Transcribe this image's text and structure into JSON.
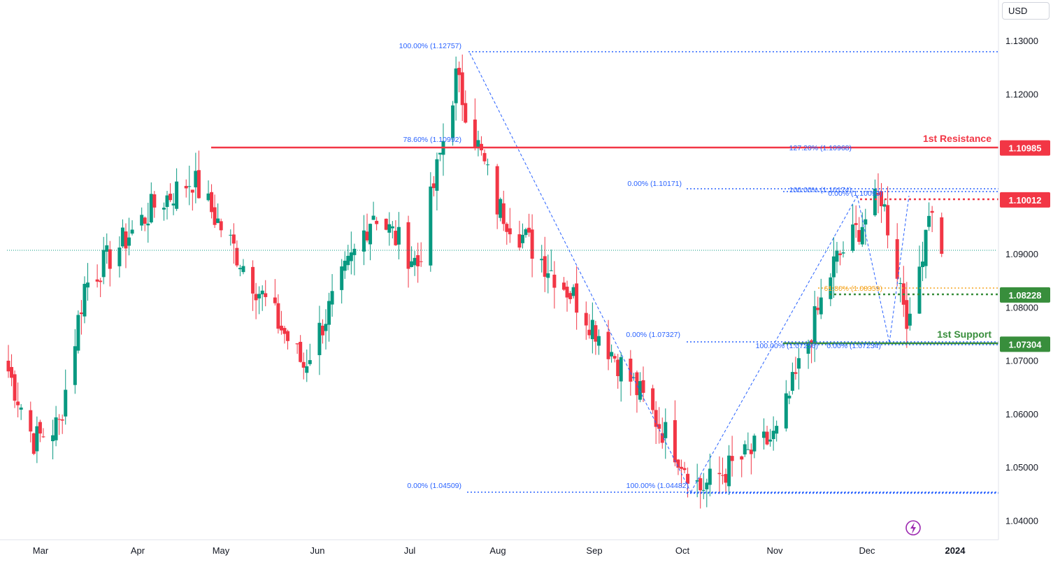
{
  "currency_button": "USD",
  "price_axis": {
    "ticks": [
      "1.04000",
      "1.05000",
      "1.06000",
      "1.07000",
      "1.08000",
      "1.09000",
      "1.10000",
      "1.11000",
      "1.12000",
      "1.13000"
    ]
  },
  "time_axis": {
    "labels": [
      "Mar",
      "Apr",
      "May",
      "Jun",
      "Jul",
      "Aug",
      "Sep",
      "Oct",
      "Nov",
      "Dec",
      "2024"
    ]
  },
  "level_badges": [
    {
      "label": "1.10985",
      "price": 1.10985,
      "color": "#f23645"
    },
    {
      "label": "1.10012",
      "price": 1.10012,
      "color": "#f23645"
    },
    {
      "label": "1.08228",
      "price": 1.08228,
      "color": "#388e3c"
    },
    {
      "label": "1.07304",
      "price": 1.07304,
      "color": "#388e3c"
    }
  ],
  "annotations": {
    "resistance_label": "1st Resistance",
    "support_label": "1st Support",
    "fib_labels": [
      "100.00% (1.12757)",
      "78.60% (1.10992)",
      "0.00% (1.04509)",
      "100.00% (1.04482)",
      "0.00% (1.10171)",
      "0.00% (1.07327)",
      "127.20% (1.10968)",
      "100.00% (1.10174)",
      "0.00% (1.10093)",
      "61.80% (1.08359)",
      "0.00% (1.07234)",
      "100.00% (1.07256)"
    ]
  },
  "colors": {
    "up": "#089981",
    "down": "#f23645",
    "resistance": "#f23645",
    "support": "#388e3c",
    "fib": "#2962ff",
    "fib_golden": "#f5a623",
    "grid_text": "#131722"
  },
  "chart_data": {
    "type": "candlestick",
    "instrument_currency": "USD",
    "period": "daily, late Feb 2023 to mid Dec 2023",
    "ylim": [
      1.035,
      1.135
    ],
    "last_price": 1.09,
    "key_levels": {
      "resistance_1": 1.10985,
      "resistance_dotted": 1.10012,
      "support_dotted": 1.08228,
      "support_1": 1.07304
    },
    "close_path_anchors": [
      {
        "date": "2023-02-27",
        "close": 1.068
      },
      {
        "date": "2023-03-07",
        "close": 1.055
      },
      {
        "date": "2023-03-15",
        "close": 1.058
      },
      {
        "date": "2023-03-23",
        "close": 1.084
      },
      {
        "date": "2023-04-14",
        "close": 1.099
      },
      {
        "date": "2023-04-26",
        "close": 1.104
      },
      {
        "date": "2023-05-31",
        "close": 1.069
      },
      {
        "date": "2023-06-22",
        "close": 1.098
      },
      {
        "date": "2023-07-06",
        "close": 1.088
      },
      {
        "date": "2023-07-18",
        "close": 1.123
      },
      {
        "date": "2023-07-31",
        "close": 1.099
      },
      {
        "date": "2023-08-24",
        "close": 1.082
      },
      {
        "date": "2023-09-07",
        "close": 1.07
      },
      {
        "date": "2023-10-03",
        "close": 1.046
      },
      {
        "date": "2023-10-27",
        "close": 1.056
      },
      {
        "date": "2023-11-14",
        "close": 1.088
      },
      {
        "date": "2023-11-29",
        "close": 1.101
      },
      {
        "date": "2023-12-08",
        "close": 1.076
      },
      {
        "date": "2023-12-14",
        "close": 1.099
      },
      {
        "date": "2023-12-18",
        "close": 1.09
      }
    ]
  }
}
